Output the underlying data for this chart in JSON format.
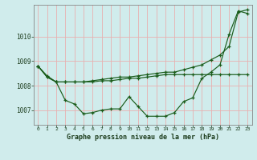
{
  "title": "Graphe pression niveau de la mer (hPa)",
  "bg_color": "#d0ecec",
  "grid_color": "#e8b0b0",
  "line_color": "#1a5c1a",
  "xlim": [
    -0.5,
    23.5
  ],
  "ylim": [
    1006.4,
    1011.3
  ],
  "yticks": [
    1007,
    1008,
    1009,
    1010
  ],
  "xtick_labels": [
    "0",
    "1",
    "2",
    "3",
    "4",
    "5",
    "6",
    "7",
    "8",
    "9",
    "10",
    "11",
    "12",
    "13",
    "14",
    "15",
    "16",
    "17",
    "18",
    "19",
    "20",
    "21",
    "22",
    "23"
  ],
  "line1": [
    1008.8,
    1008.4,
    1008.15,
    1008.15,
    1008.15,
    1008.15,
    1008.15,
    1008.2,
    1008.2,
    1008.25,
    1008.3,
    1008.3,
    1008.35,
    1008.4,
    1008.45,
    1008.45,
    1008.45,
    1008.45,
    1008.45,
    1008.45,
    1008.45,
    1008.45,
    1008.45,
    1008.45
  ],
  "line2": [
    1008.8,
    1008.35,
    1008.15,
    1007.4,
    1007.25,
    1006.85,
    1006.9,
    1007.0,
    1007.05,
    1007.05,
    1007.55,
    1007.15,
    1006.75,
    1006.75,
    1006.75,
    1006.9,
    1007.35,
    1007.5,
    1008.3,
    1008.55,
    1008.85,
    1010.1,
    1011.05,
    1010.95
  ],
  "line3": [
    1008.8,
    1008.35,
    1008.15,
    1008.15,
    1008.15,
    1008.15,
    1008.2,
    1008.25,
    1008.3,
    1008.35,
    1008.35,
    1008.4,
    1008.45,
    1008.5,
    1008.55,
    1008.55,
    1008.65,
    1008.75,
    1008.85,
    1009.05,
    1009.25,
    1009.6,
    1011.0,
    1011.1
  ]
}
